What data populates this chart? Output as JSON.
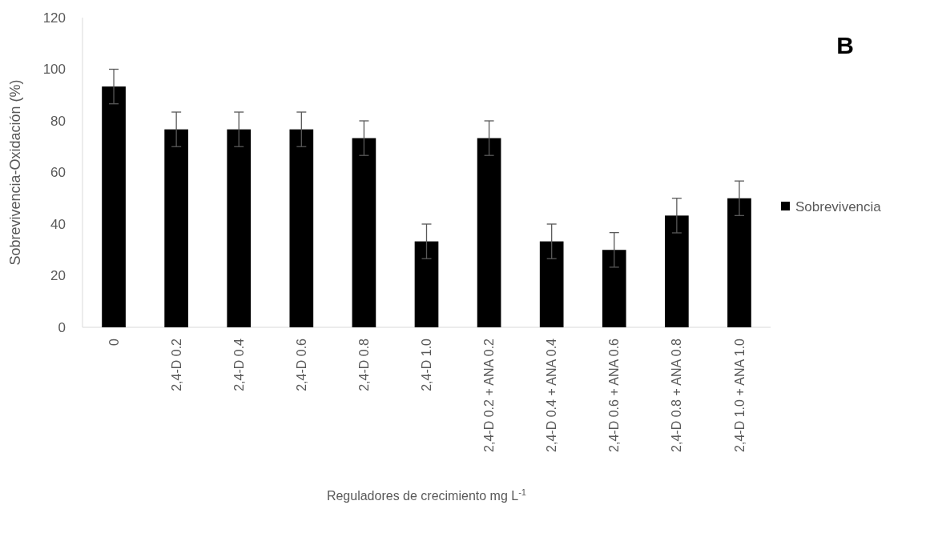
{
  "chart_data": {
    "type": "bar",
    "xlabel": "Reguladores de crecimiento mg L$^{-1}$",
    "ylabel": "Sobrevivencia-Oxidación (%)",
    "annotations": [
      "B"
    ],
    "categories": [
      "0",
      "2,4-D 0.2",
      "2,4-D 0.4",
      "2,4-D 0.6",
      "2,4-D 0.8",
      "2,4-D 1.0",
      "2,4-D 0.2 + ANA 0.2",
      "2,4-D 0.4 + ANA 0.4",
      "2,4-D 0.6 + ANA 0.6",
      "2,4-D 0.8 + ANA 0.8",
      "2,4-D 1.0 + ANA 1.0"
    ],
    "series": [
      {
        "name": "Sobrevivencia",
        "color": "#000000",
        "values": [
          93.3,
          76.7,
          76.7,
          76.7,
          73.3,
          33.3,
          73.3,
          33.3,
          30,
          43.3,
          50
        ],
        "errors": [
          6.7,
          6.7,
          6.7,
          6.7,
          6.7,
          6.7,
          6.7,
          6.7,
          6.7,
          6.7,
          6.7
        ]
      }
    ],
    "ylim": [
      0,
      120
    ],
    "yticks": [
      0,
      20,
      40,
      60,
      80,
      100,
      120
    ],
    "legend": "right"
  }
}
